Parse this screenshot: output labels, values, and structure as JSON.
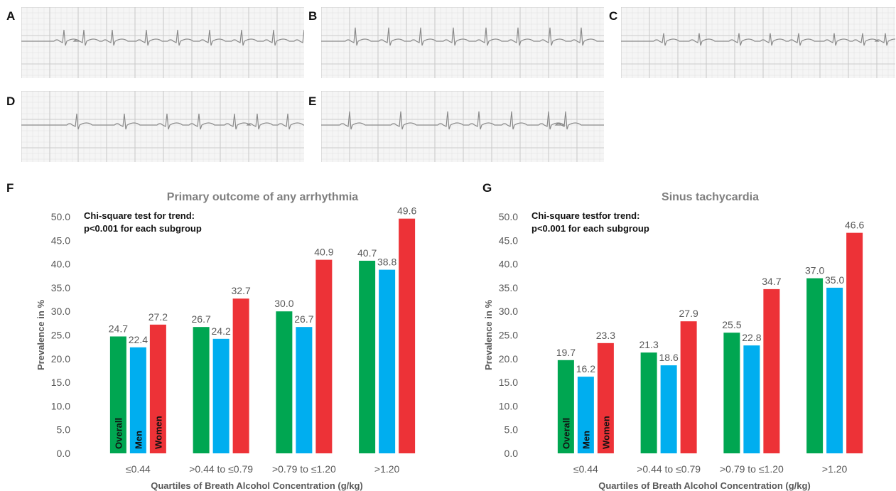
{
  "ecg_panels": [
    {
      "label": "A"
    },
    {
      "label": "B"
    },
    {
      "label": "C"
    },
    {
      "label": "D"
    },
    {
      "label": "E"
    }
  ],
  "colors": {
    "overall": "#00a651",
    "men": "#00aeef",
    "women": "#ed3237",
    "axis_text": "#595959",
    "title_text": "#7f7f7f",
    "ecg_grid": "#c8c8c8",
    "ecg_trace": "#8a8a8a"
  },
  "chart_data": [
    {
      "type": "bar",
      "panel_label": "F",
      "title": "Primary outcome of any arrhythmia",
      "annotation_line1": "Chi-square test for trend:",
      "annotation_line2": "p<0.001 for each subgroup",
      "xlabel": "Quartiles of Breath Alcohol Concentration (g/kg)",
      "ylabel": "Prevalence in %",
      "ylim": [
        0,
        50
      ],
      "yticks": [
        "0.0",
        "5.0",
        "10.0",
        "15.0",
        "20.0",
        "25.0",
        "30.0",
        "35.0",
        "40.0",
        "45.0",
        "50.0"
      ],
      "categories": [
        "≤0.44",
        ">0.44 to ≤0.79",
        ">0.79 to ≤1.20",
        ">1.20"
      ],
      "series": [
        {
          "name": "Overall",
          "values": [
            24.7,
            26.7,
            30.0,
            40.7
          ],
          "labels": [
            "24.7",
            "26.7",
            "30.0",
            "40.7"
          ]
        },
        {
          "name": "Men",
          "values": [
            22.4,
            24.2,
            26.7,
            38.8
          ],
          "labels": [
            "22.4",
            "24.2",
            "26.7",
            "38.8"
          ]
        },
        {
          "name": "Women",
          "values": [
            27.2,
            32.7,
            40.9,
            49.6
          ],
          "labels": [
            "27.2",
            "32.7",
            "40.9",
            "49.6"
          ]
        }
      ]
    },
    {
      "type": "bar",
      "panel_label": "G",
      "title": "Sinus tachycardia",
      "annotation_line1": "Chi-square testfor trend:",
      "annotation_line2": "p<0.001 for each subgroup",
      "xlabel": "Quartiles of Breath Alcohol Concentration (g/kg)",
      "ylabel": "Prevalence in %",
      "ylim": [
        0,
        50
      ],
      "yticks": [
        "0.0",
        "5.0",
        "10.0",
        "15.0",
        "20.0",
        "25.0",
        "30.0",
        "35.0",
        "40.0",
        "45.0",
        "50.0"
      ],
      "categories": [
        "≤0.44",
        ">0.44 to ≤0.79",
        ">0.79 to ≤1.20",
        ">1.20"
      ],
      "series": [
        {
          "name": "Overall",
          "values": [
            19.7,
            21.3,
            25.5,
            37.0
          ],
          "labels": [
            "19.7",
            "21.3",
            "25.5",
            "37.0"
          ]
        },
        {
          "name": "Men",
          "values": [
            16.2,
            18.6,
            22.8,
            35.0
          ],
          "labels": [
            "16.2",
            "18.6",
            "22.8",
            "35.0"
          ]
        },
        {
          "name": "Women",
          "values": [
            23.3,
            27.9,
            34.7,
            46.6
          ],
          "labels": [
            "23.3",
            "27.9",
            "34.7",
            "46.6"
          ]
        }
      ]
    }
  ]
}
